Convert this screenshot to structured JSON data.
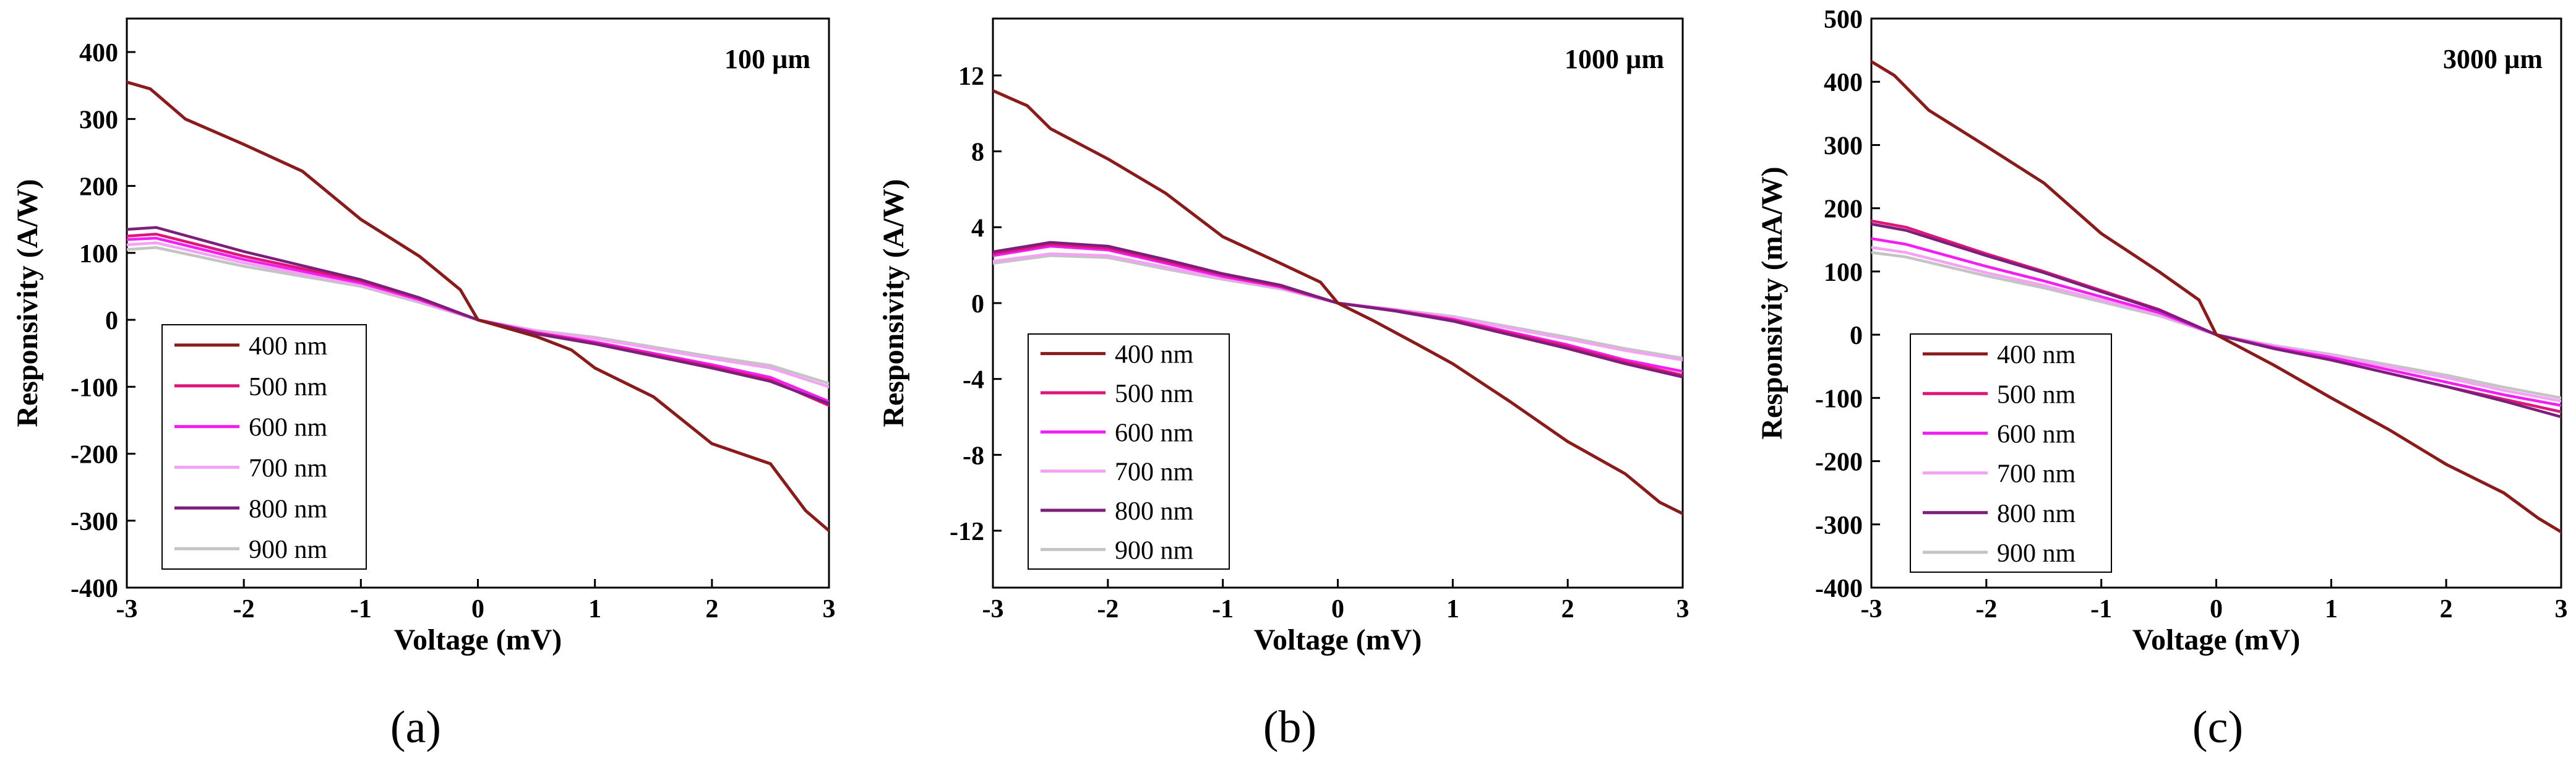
{
  "series_names": [
    "400 nm",
    "500 nm",
    "600 nm",
    "700 nm",
    "800 nm",
    "900 nm"
  ],
  "series_colors": [
    "#8b1a1a",
    "#e0157a",
    "#f21ef2",
    "#f4a2f4",
    "#7b1f7b",
    "#c4c4c4"
  ],
  "chart_data": [
    {
      "type": "line",
      "panel_label": "(a)",
      "annotation": "100 µm",
      "xlabel": "Voltage (mV)",
      "ylabel": "Responsivity (A/W)",
      "xlim": [
        -3,
        3
      ],
      "ylim": [
        -400,
        450
      ],
      "xticks": [
        -3,
        -2,
        -1,
        0,
        1,
        2,
        3
      ],
      "yticks": [
        400,
        300,
        200,
        100,
        0,
        -100,
        -200,
        -300,
        -400
      ],
      "legend": "lower-left",
      "series": [
        {
          "name": "400 nm",
          "values": [
            [
              -3,
              355
            ],
            [
              -2.8,
              345
            ],
            [
              -2.5,
              300
            ],
            [
              -2,
              262
            ],
            [
              -1.5,
              222
            ],
            [
              -1,
              150
            ],
            [
              -0.5,
              95
            ],
            [
              -0.15,
              45
            ],
            [
              0,
              0
            ],
            [
              0.5,
              -25
            ],
            [
              0.8,
              -45
            ],
            [
              1,
              -72
            ],
            [
              1.5,
              -115
            ],
            [
              2,
              -185
            ],
            [
              2.5,
              -215
            ],
            [
              2.8,
              -285
            ],
            [
              3,
              -315
            ]
          ]
        },
        {
          "name": "500 nm",
          "values": [
            [
              -3,
              125
            ],
            [
              -2.75,
              128
            ],
            [
              -2,
              95
            ],
            [
              -1,
              58
            ],
            [
              -0.5,
              32
            ],
            [
              0,
              0
            ],
            [
              0.5,
              -20
            ],
            [
              1,
              -35
            ],
            [
              2,
              -70
            ],
            [
              2.5,
              -90
            ],
            [
              3,
              -128
            ]
          ]
        },
        {
          "name": "600 nm",
          "values": [
            [
              -3,
              120
            ],
            [
              -2.75,
              122
            ],
            [
              -2,
              90
            ],
            [
              -1,
              55
            ],
            [
              -0.5,
              30
            ],
            [
              0,
              0
            ],
            [
              0.5,
              -19
            ],
            [
              1,
              -33
            ],
            [
              2,
              -67
            ],
            [
              2.5,
              -86
            ],
            [
              3,
              -122
            ]
          ]
        },
        {
          "name": "700 nm",
          "values": [
            [
              -3,
              112
            ],
            [
              -2.75,
              115
            ],
            [
              -2,
              85
            ],
            [
              -1,
              52
            ],
            [
              -0.5,
              28
            ],
            [
              0,
              0
            ],
            [
              0.5,
              -17
            ],
            [
              1,
              -28
            ],
            [
              2,
              -58
            ],
            [
              2.5,
              -72
            ],
            [
              3,
              -100
            ]
          ]
        },
        {
          "name": "800 nm",
          "values": [
            [
              -3,
              135
            ],
            [
              -2.75,
              138
            ],
            [
              -2,
              102
            ],
            [
              -1,
              60
            ],
            [
              -0.5,
              33
            ],
            [
              0,
              0
            ],
            [
              0.5,
              -21
            ],
            [
              1,
              -36
            ],
            [
              2,
              -72
            ],
            [
              2.5,
              -92
            ],
            [
              3,
              -125
            ]
          ]
        },
        {
          "name": "900 nm",
          "values": [
            [
              -3,
              105
            ],
            [
              -2.75,
              108
            ],
            [
              -2,
              80
            ],
            [
              -1,
              50
            ],
            [
              -0.5,
              26
            ],
            [
              0,
              0
            ],
            [
              0.5,
              -16
            ],
            [
              1,
              -26
            ],
            [
              2,
              -55
            ],
            [
              2.5,
              -68
            ],
            [
              3,
              -95
            ]
          ]
        }
      ]
    },
    {
      "type": "line",
      "panel_label": "(b)",
      "annotation": "1000 µm",
      "xlabel": "Voltage (mV)",
      "ylabel": "Responsivity (A/W)",
      "xlim": [
        -3,
        3
      ],
      "ylim": [
        -15,
        15
      ],
      "xticks": [
        -3,
        -2,
        -1,
        0,
        1,
        2,
        3
      ],
      "yticks": [
        12,
        8,
        4,
        0,
        -4,
        -8,
        -12
      ],
      "legend": "lower-left",
      "series": [
        {
          "name": "400 nm",
          "values": [
            [
              -3,
              11.2
            ],
            [
              -2.7,
              10.4
            ],
            [
              -2.5,
              9.2
            ],
            [
              -2,
              7.6
            ],
            [
              -1.5,
              5.8
            ],
            [
              -1,
              3.5
            ],
            [
              -0.5,
              2.1
            ],
            [
              -0.15,
              1.1
            ],
            [
              0,
              0
            ],
            [
              0.3,
              -0.9
            ],
            [
              0.7,
              -2.2
            ],
            [
              1,
              -3.2
            ],
            [
              1.5,
              -5.2
            ],
            [
              2,
              -7.3
            ],
            [
              2.5,
              -9.0
            ],
            [
              2.8,
              -10.5
            ],
            [
              3,
              -11.1
            ]
          ]
        },
        {
          "name": "500 nm",
          "values": [
            [
              -3,
              2.6
            ],
            [
              -2.5,
              3.1
            ],
            [
              -2,
              2.9
            ],
            [
              -1.5,
              2.2
            ],
            [
              -1,
              1.5
            ],
            [
              -0.5,
              0.9
            ],
            [
              0,
              0
            ],
            [
              0.5,
              -0.4
            ],
            [
              1,
              -0.9
            ],
            [
              2,
              -2.3
            ],
            [
              2.5,
              -3.1
            ],
            [
              3,
              -3.8
            ]
          ]
        },
        {
          "name": "600 nm",
          "values": [
            [
              -3,
              2.5
            ],
            [
              -2.5,
              3.0
            ],
            [
              -2,
              2.8
            ],
            [
              -1.5,
              2.1
            ],
            [
              -1,
              1.4
            ],
            [
              -0.5,
              0.85
            ],
            [
              0,
              0
            ],
            [
              0.5,
              -0.38
            ],
            [
              1,
              -0.85
            ],
            [
              2,
              -2.2
            ],
            [
              2.5,
              -3.0
            ],
            [
              3,
              -3.6
            ]
          ]
        },
        {
          "name": "700 nm",
          "values": [
            [
              -3,
              2.2
            ],
            [
              -2.5,
              2.6
            ],
            [
              -2,
              2.5
            ],
            [
              -1.5,
              1.9
            ],
            [
              -1,
              1.3
            ],
            [
              -0.5,
              0.8
            ],
            [
              0,
              0
            ],
            [
              0.5,
              -0.35
            ],
            [
              1,
              -0.75
            ],
            [
              2,
              -1.9
            ],
            [
              2.5,
              -2.5
            ],
            [
              3,
              -3.0
            ]
          ]
        },
        {
          "name": "800 nm",
          "values": [
            [
              -3,
              2.7
            ],
            [
              -2.5,
              3.2
            ],
            [
              -2,
              3.0
            ],
            [
              -1.5,
              2.3
            ],
            [
              -1,
              1.55
            ],
            [
              -0.5,
              0.95
            ],
            [
              0,
              0
            ],
            [
              0.5,
              -0.42
            ],
            [
              1,
              -0.95
            ],
            [
              2,
              -2.4
            ],
            [
              2.5,
              -3.2
            ],
            [
              3,
              -3.9
            ]
          ]
        },
        {
          "name": "900 nm",
          "values": [
            [
              -3,
              2.1
            ],
            [
              -2.5,
              2.5
            ],
            [
              -2,
              2.4
            ],
            [
              -1.5,
              1.8
            ],
            [
              -1,
              1.25
            ],
            [
              -0.5,
              0.75
            ],
            [
              0,
              0
            ],
            [
              0.5,
              -0.33
            ],
            [
              1,
              -0.7
            ],
            [
              2,
              -1.8
            ],
            [
              2.5,
              -2.4
            ],
            [
              3,
              -2.9
            ]
          ]
        }
      ]
    },
    {
      "type": "line",
      "panel_label": "(c)",
      "annotation": "3000 µm",
      "xlabel": "Voltage (mV)",
      "ylabel": "Responsivity (mA/W)",
      "xlim": [
        -3,
        3
      ],
      "ylim": [
        -400,
        500
      ],
      "xticks": [
        -3,
        -2,
        -1,
        0,
        1,
        2,
        3
      ],
      "yticks": [
        500,
        400,
        300,
        200,
        100,
        0,
        -100,
        -200,
        -300,
        -400
      ],
      "legend": "lower-left",
      "series": [
        {
          "name": "400 nm",
          "values": [
            [
              -3,
              432
            ],
            [
              -2.8,
              410
            ],
            [
              -2.5,
              355
            ],
            [
              -2,
              298
            ],
            [
              -1.5,
              240
            ],
            [
              -1,
              160
            ],
            [
              -0.5,
              100
            ],
            [
              -0.15,
              55
            ],
            [
              0,
              0
            ],
            [
              0.5,
              -48
            ],
            [
              1,
              -100
            ],
            [
              1.5,
              -150
            ],
            [
              2,
              -205
            ],
            [
              2.5,
              -250
            ],
            [
              2.8,
              -290
            ],
            [
              3,
              -312
            ]
          ]
        },
        {
          "name": "500 nm",
          "values": [
            [
              -3,
              180
            ],
            [
              -2.7,
              170
            ],
            [
              -2,
              128
            ],
            [
              -1.5,
              100
            ],
            [
              -1,
              70
            ],
            [
              -0.5,
              40
            ],
            [
              0,
              0
            ],
            [
              0.5,
              -22
            ],
            [
              1,
              -40
            ],
            [
              2,
              -82
            ],
            [
              2.5,
              -102
            ],
            [
              3,
              -122
            ]
          ]
        },
        {
          "name": "600 nm",
          "values": [
            [
              -3,
              152
            ],
            [
              -2.7,
              143
            ],
            [
              -2,
              108
            ],
            [
              -1.5,
              85
            ],
            [
              -1,
              60
            ],
            [
              -0.5,
              35
            ],
            [
              0,
              0
            ],
            [
              0.5,
              -20
            ],
            [
              1,
              -36
            ],
            [
              2,
              -75
            ],
            [
              2.5,
              -95
            ],
            [
              3,
              -112
            ]
          ]
        },
        {
          "name": "700 nm",
          "values": [
            [
              -3,
              138
            ],
            [
              -2.7,
              130
            ],
            [
              -2,
              98
            ],
            [
              -1.5,
              78
            ],
            [
              -1,
              55
            ],
            [
              -0.5,
              32
            ],
            [
              0,
              0
            ],
            [
              0.5,
              -18
            ],
            [
              1,
              -33
            ],
            [
              2,
              -68
            ],
            [
              2.5,
              -88
            ],
            [
              3,
              -105
            ]
          ]
        },
        {
          "name": "800 nm",
          "values": [
            [
              -3,
              175
            ],
            [
              -2.7,
              165
            ],
            [
              -2,
              125
            ],
            [
              -1.5,
              98
            ],
            [
              -1,
              68
            ],
            [
              -0.5,
              39
            ],
            [
              0,
              0
            ],
            [
              0.5,
              -22
            ],
            [
              1,
              -40
            ],
            [
              2,
              -82
            ],
            [
              2.5,
              -105
            ],
            [
              3,
              -130
            ]
          ]
        },
        {
          "name": "900 nm",
          "values": [
            [
              -3,
              130
            ],
            [
              -2.7,
              123
            ],
            [
              -2,
              93
            ],
            [
              -1.5,
              74
            ],
            [
              -1,
              52
            ],
            [
              -0.5,
              30
            ],
            [
              0,
              0
            ],
            [
              0.5,
              -17
            ],
            [
              1,
              -31
            ],
            [
              2,
              -64
            ],
            [
              2.5,
              -83
            ],
            [
              3,
              -100
            ]
          ]
        }
      ]
    }
  ]
}
